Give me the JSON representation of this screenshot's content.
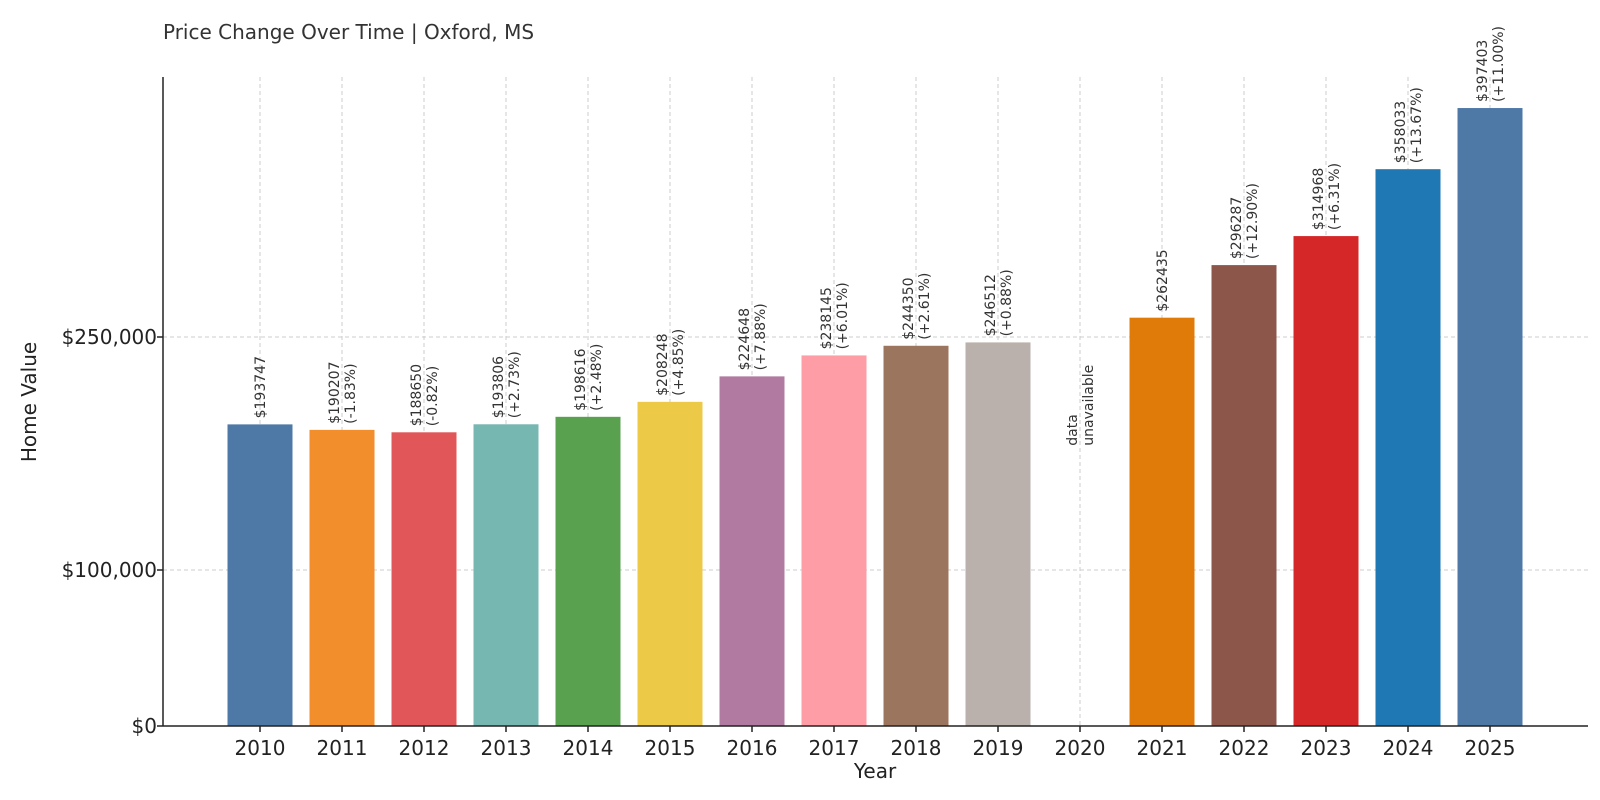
{
  "chart_data": {
    "type": "bar",
    "title": "Price Change Over Time | Oxford, MS",
    "xlabel": "Year",
    "ylabel": "Home Value",
    "categories": [
      "2010",
      "2011",
      "2012",
      "2013",
      "2014",
      "2015",
      "2016",
      "2017",
      "2018",
      "2019",
      "2020",
      "2021",
      "2022",
      "2023",
      "2024",
      "2025"
    ],
    "values": [
      193747,
      190207,
      188650,
      193806,
      198616,
      208248,
      224648,
      238145,
      244350,
      246512,
      null,
      262435,
      296287,
      314968,
      358033,
      397403
    ],
    "value_labels": [
      "$193747",
      "$190207",
      "$188650",
      "$193806",
      "$198616",
      "$208248",
      "$224648",
      "$238145",
      "$244350",
      "$246512",
      "",
      "$262435",
      "$296287",
      "$314968",
      "$358033",
      "$397403"
    ],
    "change_labels": [
      "",
      "(-1.83%)",
      "(-0.82%)",
      "(+2.73%)",
      "(+2.48%)",
      "(+4.85%)",
      "(+7.88%)",
      "(+6.01%)",
      "(+2.61%)",
      "(+0.88%)",
      "",
      "",
      "(+12.90%)",
      "(+6.31%)",
      "(+13.67%)",
      "(+11.00%)"
    ],
    "missing_label": [
      "data",
      "unavailable"
    ],
    "yticks": [
      0,
      100000,
      250000
    ],
    "ytick_labels": [
      "$0",
      "$100,000",
      "$250,000"
    ],
    "grid": true,
    "colors": [
      "#4e79a7",
      "#f28e2b",
      "#e15759",
      "#76b7b2",
      "#59a14f",
      "#edc948",
      "#b07aa1",
      "#ff9da7",
      "#9c755f",
      "#bab0ac",
      "#ffffff",
      "#e07b0a",
      "#8c564b",
      "#d62728",
      "#1f77b4",
      "#4e79a7"
    ]
  }
}
